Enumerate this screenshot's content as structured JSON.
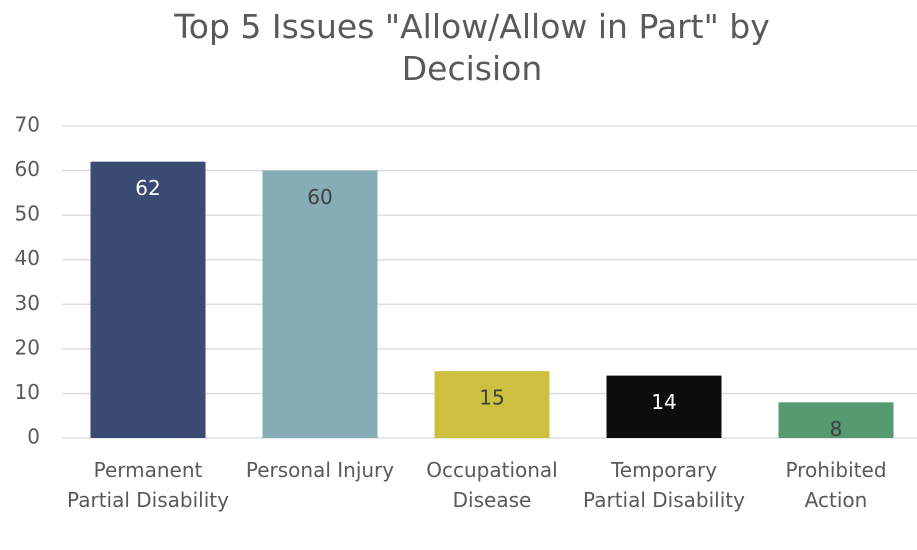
{
  "chart_data": {
    "type": "bar",
    "title": "Top 5 Issues \"Allow/Allow in Part\" by Decision",
    "categories": [
      "Permanent Partial Disability",
      "Personal Injury",
      "Occupational Disease",
      "Temporary Partial Disability",
      "Prohibited Action"
    ],
    "values": [
      62,
      60,
      15,
      14,
      8
    ],
    "colors": [
      "#3b4a73",
      "#86adb5",
      "#cdc040",
      "#0d0d0d",
      "#559a70"
    ],
    "label_colors": [
      "#ffffff",
      "#404040",
      "#404040",
      "#ffffff",
      "#404040"
    ],
    "ylim": [
      0,
      70
    ],
    "yticks": [
      0,
      10,
      20,
      30,
      40,
      50,
      60,
      70
    ],
    "grid": true
  }
}
